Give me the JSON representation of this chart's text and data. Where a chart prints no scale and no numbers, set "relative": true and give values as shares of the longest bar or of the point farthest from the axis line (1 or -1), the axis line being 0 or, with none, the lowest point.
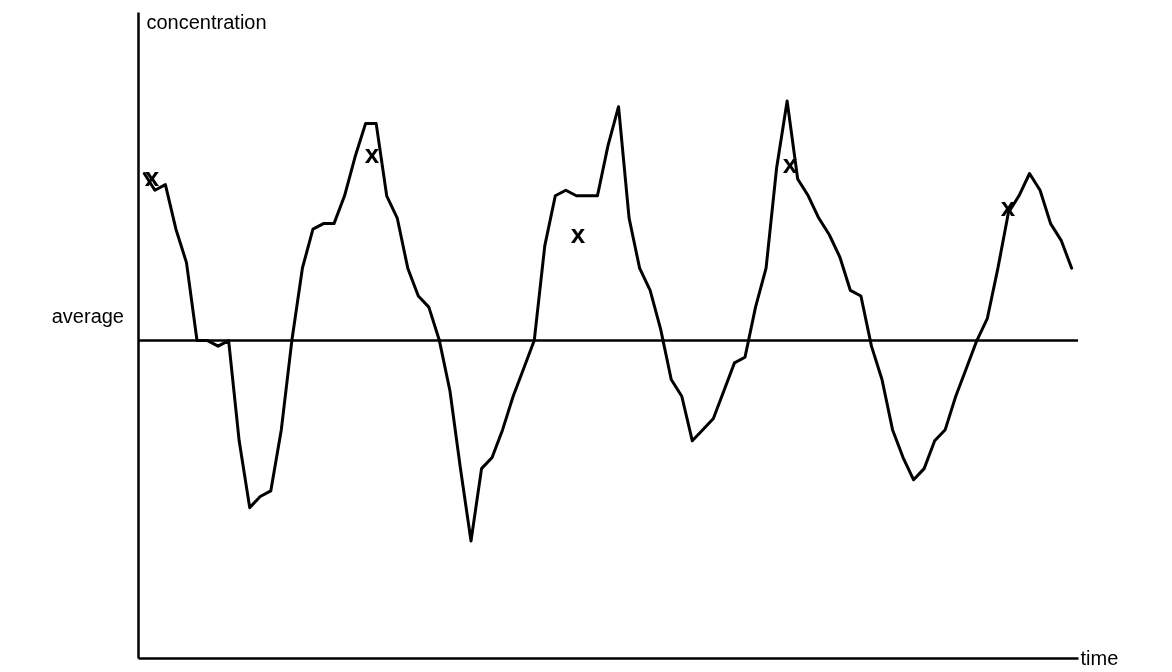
{
  "chart_data": {
    "type": "line",
    "relative": true,
    "xlabel": "time",
    "ylabel": "concentration",
    "categories": [
      null,
      null,
      null,
      null,
      null,
      null,
      null,
      null,
      null,
      null,
      null,
      null,
      null,
      null,
      null,
      null,
      null,
      null,
      null,
      null,
      null,
      null,
      null,
      null,
      null,
      null,
      null,
      null,
      null,
      null,
      null,
      null,
      null,
      null,
      null,
      null,
      null,
      null,
      null,
      null,
      null,
      null,
      null,
      null,
      null,
      null,
      null,
      null,
      null,
      null,
      null,
      null,
      null,
      null,
      null,
      null,
      null,
      null,
      null,
      null,
      null,
      null,
      null,
      null,
      null,
      null,
      null,
      null,
      null,
      null,
      null,
      null,
      null,
      null,
      null,
      null,
      null,
      null,
      null,
      null,
      null,
      null,
      null,
      null,
      null,
      null,
      null,
      null,
      null
    ],
    "series": [
      {
        "color": "#000000",
        "values": [
          0.87,
          0.84,
          0.85,
          0.77,
          0.71,
          0.57,
          0.57,
          0.56,
          0.57,
          0.39,
          0.27,
          0.29,
          0.3,
          0.41,
          0.57,
          0.7,
          0.77,
          0.78,
          0.78,
          0.83,
          0.9,
          0.96,
          0.96,
          0.83,
          0.79,
          0.7,
          0.65,
          0.63,
          0.57,
          0.48,
          0.34,
          0.21,
          0.34,
          0.36,
          0.41,
          0.47,
          0.52,
          0.57,
          0.74,
          0.83,
          0.84,
          0.83,
          0.83,
          0.83,
          0.92,
          0.99,
          0.79,
          0.7,
          0.66,
          0.59,
          0.5,
          0.47,
          0.39,
          0.41,
          0.43,
          0.48,
          0.53,
          0.54,
          0.63,
          0.7,
          0.88,
          1,
          0.86,
          0.83,
          0.79,
          0.76,
          0.72,
          0.66,
          0.65,
          0.56,
          0.5,
          0.41,
          0.36,
          0.32,
          0.34,
          0.39,
          0.41,
          0.47,
          0.52,
          0.57,
          0.61,
          0.7,
          0.8,
          0.83,
          0.87,
          0.84,
          0.78,
          0.75,
          0.7
        ]
      }
    ],
    "annotations": [
      "x",
      "x",
      "x",
      "x",
      "x"
    ],
    "ref_lines": [
      {
        "axis": "y",
        "value": 0.57,
        "label": "average"
      }
    ]
  }
}
